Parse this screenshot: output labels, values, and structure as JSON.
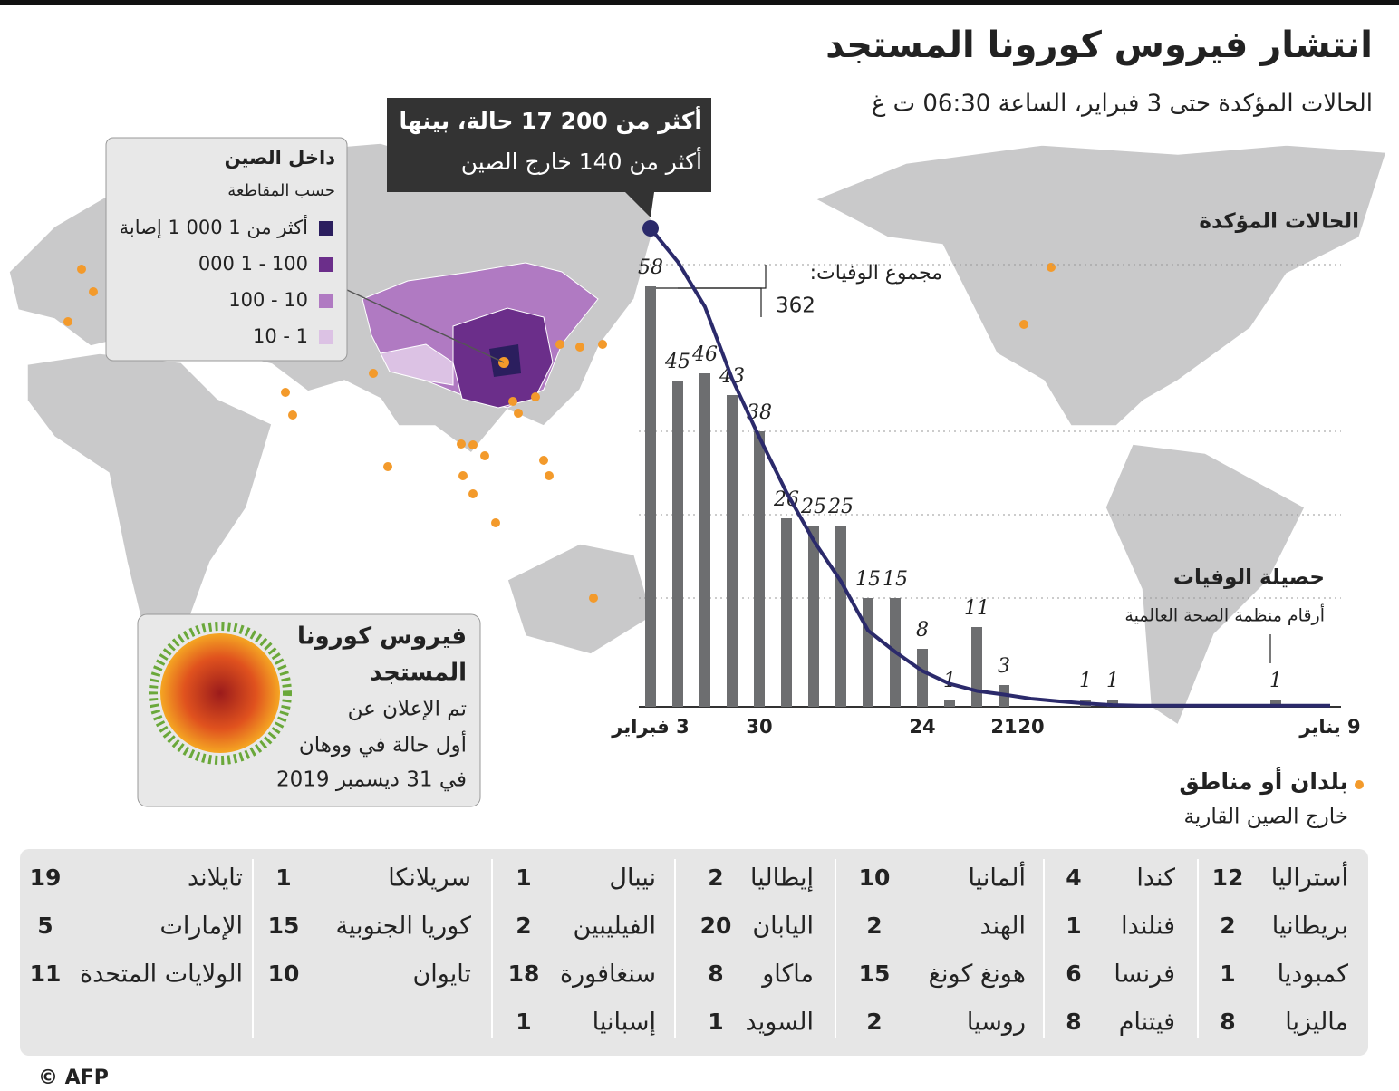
{
  "header": {
    "title": "انتشار فيروس كورونا المستجد",
    "subtitle": "الحالات المؤكدة حتى 3 فبراير، الساعة 06:30 ت غ"
  },
  "callout": {
    "lines": [
      "أكثر من 200 17 حالة، بينها",
      "أكثر من 140 خارج الصين"
    ]
  },
  "china_legend": {
    "title": "داخل الصين",
    "subtitle": "حسب المقاطعة",
    "items": [
      {
        "label": "أكثر من 1 000 1 إصابة",
        "color": "#2b1e5e"
      },
      {
        "label": "100 - 1 000",
        "color": "#6b2e8a"
      },
      {
        "label": "10 - 100",
        "color": "#b07ac2"
      },
      {
        "label": "1 - 10",
        "color": "#dcc2e4"
      }
    ]
  },
  "virus_box": {
    "title_lines": [
      "فيروس كورونا",
      "المستجد"
    ],
    "lines": [
      "تم الإعلان عن",
      "أول حالة في ووهان",
      "في 31 ديسمبر 2019"
    ]
  },
  "chart_data": {
    "type": "bar",
    "categories": [
      "9 يناير",
      null,
      null,
      null,
      null,
      null,
      null,
      null,
      null,
      null,
      null,
      "20",
      "21",
      null,
      null,
      "24",
      null,
      null,
      null,
      null,
      null,
      "30",
      null,
      null,
      null,
      "3 فبراير"
    ],
    "series": [
      {
        "name": "حصيلة الوفيات",
        "type": "bar",
        "color": "#6d6e70",
        "values": [
          0,
          0,
          1,
          0,
          0,
          0,
          0,
          0,
          1,
          1,
          0,
          0,
          3,
          11,
          1,
          8,
          15,
          15,
          25,
          25,
          26,
          38,
          43,
          46,
          45,
          58
        ]
      },
      {
        "name": "الحالات المؤكدة",
        "type": "line",
        "axis": "y2",
        "color": "#2b2a6b",
        "values": [
          41,
          41,
          41,
          41,
          41,
          41,
          41,
          41,
          62,
          121,
          198,
          291,
          440,
          571,
          830,
          1287,
          1975,
          2744,
          4515,
          5974,
          7711,
          9692,
          11791,
          14380,
          16000,
          17200
        ]
      }
    ],
    "source": "أرقام منظمة الصحة العالمية",
    "total_label": "مجموع الوفيات:",
    "total": 362,
    "ylim": [
      0,
      66
    ],
    "y2lim": [
      0,
      17200
    ]
  },
  "dots_legend": {
    "title": "بلدان أو مناطق",
    "subtitle": "خارج الصين القارية"
  },
  "countries": {
    "columns": [
      [
        [
          "أستراليا",
          12
        ],
        [
          "بريطانيا",
          2
        ],
        [
          "كمبوديا",
          1
        ],
        [
          "ماليزيا",
          8
        ]
      ],
      [
        [
          "كندا",
          4
        ],
        [
          "فنلندا",
          1
        ],
        [
          "فرنسا",
          6
        ],
        [
          "فيتنام",
          8
        ]
      ],
      [
        [
          "ألمانيا",
          10
        ],
        [
          "الهند",
          2
        ],
        [
          "هونغ كونغ",
          15
        ],
        [
          "روسيا",
          2
        ]
      ],
      [
        [
          "إيطاليا",
          2
        ],
        [
          "اليابان",
          20
        ],
        [
          "ماكاو",
          8
        ],
        [
          "السويد",
          1
        ]
      ],
      [
        [
          "نيبال",
          1
        ],
        [
          "الفيليبين",
          2
        ],
        [
          "سنغافورة",
          18
        ],
        [
          "إسبانيا",
          1
        ]
      ],
      [
        [
          "سريلانكا",
          1
        ],
        [
          "كوريا الجنوبية",
          15
        ],
        [
          "تايوان",
          10
        ]
      ],
      [
        [
          "تايلاند",
          19
        ],
        [
          "الإمارات",
          5
        ],
        [
          "الولايات المتحدة",
          11
        ]
      ]
    ]
  },
  "credit": "© AFP"
}
